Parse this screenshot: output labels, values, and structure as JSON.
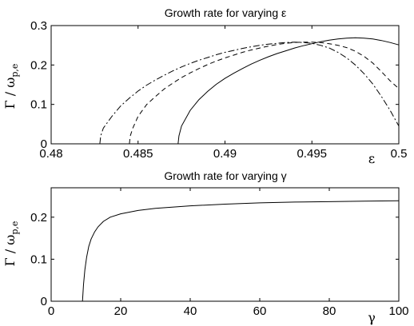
{
  "chart_data": [
    {
      "type": "line",
      "title": "Growth rate for varying ε",
      "xlabel": "ε",
      "ylabel_main": "Γ / ω",
      "ylabel_sub": "p,e",
      "xlim": [
        0.48,
        0.5
      ],
      "ylim": [
        0,
        0.3
      ],
      "xticks": [
        0.48,
        0.485,
        0.49,
        0.495,
        0.5
      ],
      "xtick_labels": [
        "0.48",
        "0.485",
        "0.49",
        "0.495",
        "0.5"
      ],
      "yticks": [
        0,
        0.1,
        0.2,
        0.3
      ],
      "ytick_labels": [
        "0",
        "0.1",
        "0.2",
        "0.3"
      ],
      "series": [
        {
          "style": "solid",
          "x": [
            0.4873,
            0.48735,
            0.4875,
            0.488,
            0.4885,
            0.489,
            0.4895,
            0.49,
            0.4905,
            0.491,
            0.4915,
            0.492,
            0.4925,
            0.493,
            0.4935,
            0.494,
            0.4945,
            0.495,
            0.4955,
            0.496,
            0.4965,
            0.497,
            0.4975,
            0.498,
            0.4985,
            0.499,
            0.4995,
            0.5
          ],
          "y": [
            0.0,
            0.02,
            0.045,
            0.085,
            0.112,
            0.133,
            0.151,
            0.166,
            0.179,
            0.191,
            0.202,
            0.212,
            0.221,
            0.229,
            0.236,
            0.243,
            0.249,
            0.254,
            0.259,
            0.263,
            0.266,
            0.268,
            0.269,
            0.268,
            0.266,
            0.262,
            0.257,
            0.251
          ]
        },
        {
          "style": "dashed",
          "x": [
            0.4845,
            0.48455,
            0.4847,
            0.485,
            0.4855,
            0.486,
            0.4865,
            0.487,
            0.4875,
            0.488,
            0.4885,
            0.489,
            0.4895,
            0.49,
            0.4905,
            0.491,
            0.4915,
            0.492,
            0.4925,
            0.493,
            0.4935,
            0.494,
            0.4945,
            0.495,
            0.4955,
            0.496,
            0.4965,
            0.497,
            0.4975,
            0.498,
            0.4985,
            0.499,
            0.4995,
            0.5
          ],
          "y": [
            0.0,
            0.02,
            0.04,
            0.07,
            0.1,
            0.12,
            0.139,
            0.154,
            0.168,
            0.18,
            0.191,
            0.201,
            0.21,
            0.218,
            0.225,
            0.232,
            0.238,
            0.243,
            0.248,
            0.252,
            0.255,
            0.257,
            0.258,
            0.258,
            0.257,
            0.254,
            0.25,
            0.244,
            0.235,
            0.222,
            0.205,
            0.183,
            0.16,
            0.14
          ]
        },
        {
          "style": "dashdot",
          "x": [
            0.4828,
            0.48285,
            0.483,
            0.4835,
            0.484,
            0.4845,
            0.485,
            0.4855,
            0.486,
            0.4865,
            0.487,
            0.4875,
            0.488,
            0.4885,
            0.489,
            0.4895,
            0.49,
            0.4905,
            0.491,
            0.4915,
            0.492,
            0.4925,
            0.493,
            0.4935,
            0.494,
            0.4945,
            0.495,
            0.4955,
            0.496,
            0.4965,
            0.497,
            0.4975,
            0.498,
            0.4985,
            0.499,
            0.4995,
            0.5
          ],
          "y": [
            0.0,
            0.02,
            0.04,
            0.07,
            0.096,
            0.116,
            0.134,
            0.149,
            0.162,
            0.174,
            0.185,
            0.195,
            0.204,
            0.212,
            0.219,
            0.226,
            0.232,
            0.237,
            0.242,
            0.246,
            0.25,
            0.253,
            0.255,
            0.257,
            0.258,
            0.257,
            0.255,
            0.25,
            0.243,
            0.232,
            0.218,
            0.2,
            0.178,
            0.152,
            0.12,
            0.085,
            0.045
          ]
        }
      ]
    },
    {
      "type": "line",
      "title": "Growth rate for varying γ",
      "xlabel": "γ",
      "ylabel_main": "Γ / ω",
      "ylabel_sub": "p,e",
      "xlim": [
        0,
        100
      ],
      "ylim": [
        0,
        0.27
      ],
      "xticks": [
        0,
        20,
        40,
        60,
        80,
        100
      ],
      "xtick_labels": [
        "0",
        "20",
        "40",
        "60",
        "80",
        "100"
      ],
      "yticks": [
        0,
        0.1,
        0.2
      ],
      "ytick_labels": [
        "0",
        "0.1",
        "0.2"
      ],
      "series": [
        {
          "style": "solid",
          "x": [
            9.0,
            9.3,
            9.7,
            10.2,
            10.8,
            11.5,
            12.5,
            13.5,
            15,
            17,
            20,
            25,
            30,
            40,
            50,
            60,
            70,
            80,
            90,
            100
          ],
          "y": [
            0.0,
            0.04,
            0.075,
            0.105,
            0.13,
            0.148,
            0.165,
            0.177,
            0.19,
            0.2,
            0.208,
            0.216,
            0.221,
            0.227,
            0.231,
            0.234,
            0.236,
            0.237,
            0.238,
            0.239
          ]
        }
      ]
    }
  ]
}
